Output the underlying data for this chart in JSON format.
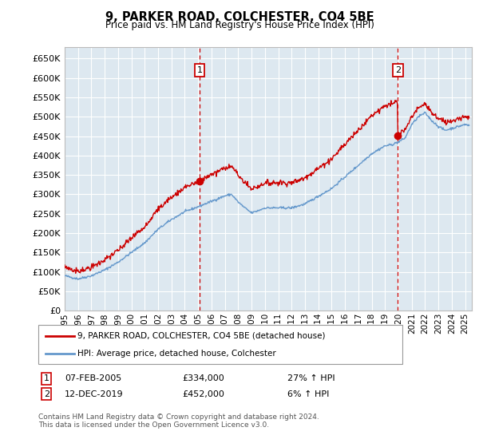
{
  "title": "9, PARKER ROAD, COLCHESTER, CO4 5BE",
  "subtitle": "Price paid vs. HM Land Registry's House Price Index (HPI)",
  "legend_line1": "9, PARKER ROAD, COLCHESTER, CO4 5BE (detached house)",
  "legend_line2": "HPI: Average price, detached house, Colchester",
  "annotation1_label": "1",
  "annotation1_date": "07-FEB-2005",
  "annotation1_price": "£334,000",
  "annotation1_hpi": "27% ↑ HPI",
  "annotation2_label": "2",
  "annotation2_date": "12-DEC-2019",
  "annotation2_price": "£452,000",
  "annotation2_hpi": "6% ↑ HPI",
  "footer": "Contains HM Land Registry data © Crown copyright and database right 2024.\nThis data is licensed under the Open Government Licence v3.0.",
  "ylim": [
    0,
    680000
  ],
  "yticks": [
    0,
    50000,
    100000,
    150000,
    200000,
    250000,
    300000,
    350000,
    400000,
    450000,
    500000,
    550000,
    600000,
    650000
  ],
  "xlim_start": 1995.0,
  "xlim_end": 2025.5,
  "red_line_color": "#cc0000",
  "blue_line_color": "#6699cc",
  "background_color": "#dde8f0",
  "grid_color": "#ffffff",
  "vline_color": "#cc0000",
  "sale1_x": 2005.1,
  "sale2_x": 2019.95,
  "sale1_y": 334000,
  "sale2_y": 452000
}
